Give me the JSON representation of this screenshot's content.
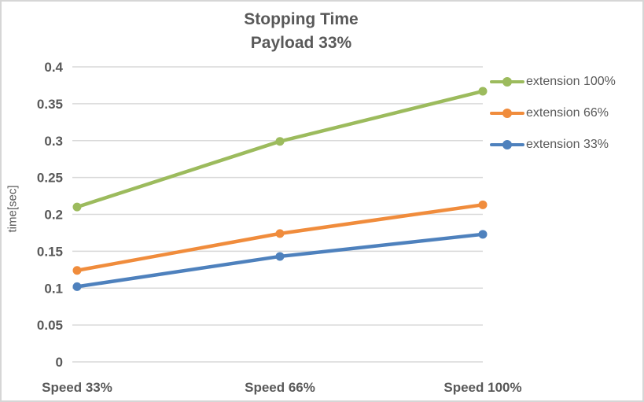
{
  "chart_data": {
    "type": "line",
    "title": "Stopping Time",
    "subtitle": "Payload 33%",
    "categories": [
      "Speed 33%",
      "Speed 66%",
      "Speed 100%"
    ],
    "series": [
      {
        "name": "extension 100%",
        "values": [
          0.21,
          0.299,
          0.367
        ],
        "color": "#9CBB5D"
      },
      {
        "name": "extension 66%",
        "values": [
          0.124,
          0.174,
          0.213
        ],
        "color": "#F08C3C"
      },
      {
        "name": "extension 33%",
        "values": [
          0.102,
          0.143,
          0.173
        ],
        "color": "#4E81BD"
      }
    ],
    "xlabel": "",
    "ylabel": "time[sec]",
    "ylim": [
      0,
      0.4
    ],
    "ytick_step": 0.05,
    "yticks": [
      "0",
      "0.05",
      "0.1",
      "0.15",
      "0.2",
      "0.25",
      "0.3",
      "0.35",
      "0.4"
    ],
    "grid": true,
    "legend_position": "right"
  },
  "colors": {
    "text": "#595959",
    "gridline": "#D9D9D9",
    "border": "#D6D6D6",
    "background": "#FFFFFF"
  }
}
